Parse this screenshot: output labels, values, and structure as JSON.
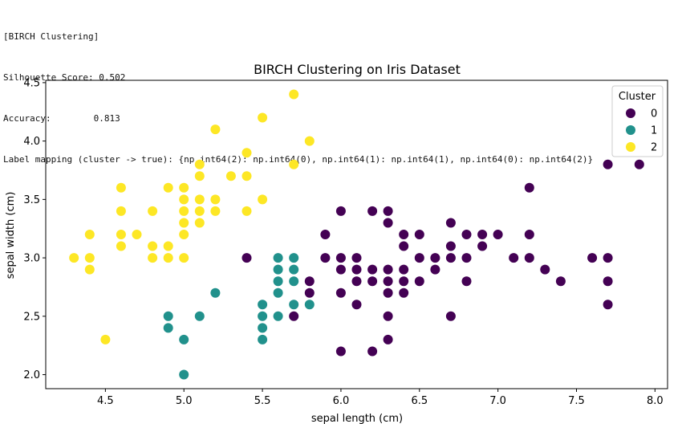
{
  "console": {
    "lines": [
      "[BIRCH Clustering]",
      "Silhouette Score: 0.502",
      "Accuracy:        0.813",
      "Label mapping (cluster -> true): {np.int64(2): np.int64(0), np.int64(1): np.int64(1), np.int64(0): np.int64(2)}"
    ]
  },
  "chart_data": {
    "type": "scatter",
    "title": "BIRCH Clustering on Iris Dataset",
    "xlabel": "sepal length (cm)",
    "ylabel": "sepal width (cm)",
    "xlim": [
      4.12,
      8.08
    ],
    "ylim": [
      1.88,
      4.52
    ],
    "xticks": [
      "4.5",
      "5.0",
      "5.5",
      "6.0",
      "6.5",
      "7.0",
      "7.5",
      "8.0"
    ],
    "yticks": [
      "2.0",
      "2.5",
      "3.0",
      "3.5",
      "4.0",
      "4.5"
    ],
    "grid": false,
    "legend": {
      "title": "Cluster",
      "placement": "top-right"
    },
    "series": [
      {
        "name": "0",
        "color": "#440154",
        "points": [
          [
            5.4,
            3.0
          ],
          [
            5.7,
            2.5
          ],
          [
            5.8,
            2.8
          ],
          [
            5.8,
            2.7
          ],
          [
            5.9,
            3.2
          ],
          [
            5.9,
            3.0
          ],
          [
            6.0,
            3.4
          ],
          [
            6.0,
            3.0
          ],
          [
            6.0,
            2.9
          ],
          [
            6.0,
            2.7
          ],
          [
            6.0,
            2.2
          ],
          [
            6.1,
            3.0
          ],
          [
            6.1,
            2.9
          ],
          [
            6.1,
            2.8
          ],
          [
            6.1,
            2.6
          ],
          [
            6.2,
            3.4
          ],
          [
            6.2,
            2.9
          ],
          [
            6.2,
            2.8
          ],
          [
            6.2,
            2.2
          ],
          [
            6.3,
            3.4
          ],
          [
            6.3,
            3.3
          ],
          [
            6.3,
            2.9
          ],
          [
            6.3,
            2.8
          ],
          [
            6.3,
            2.7
          ],
          [
            6.3,
            2.5
          ],
          [
            6.3,
            2.3
          ],
          [
            6.4,
            3.2
          ],
          [
            6.4,
            3.1
          ],
          [
            6.4,
            2.9
          ],
          [
            6.4,
            2.8
          ],
          [
            6.4,
            2.7
          ],
          [
            6.5,
            3.2
          ],
          [
            6.5,
            3.0
          ],
          [
            6.5,
            2.8
          ],
          [
            6.6,
            3.0
          ],
          [
            6.6,
            2.9
          ],
          [
            6.7,
            3.3
          ],
          [
            6.7,
            3.1
          ],
          [
            6.7,
            3.0
          ],
          [
            6.7,
            2.5
          ],
          [
            6.8,
            3.2
          ],
          [
            6.8,
            3.0
          ],
          [
            6.8,
            2.8
          ],
          [
            6.9,
            3.2
          ],
          [
            6.9,
            3.1
          ],
          [
            7.0,
            3.2
          ],
          [
            7.1,
            3.0
          ],
          [
            7.2,
            3.6
          ],
          [
            7.2,
            3.2
          ],
          [
            7.2,
            3.0
          ],
          [
            7.3,
            2.9
          ],
          [
            7.4,
            2.8
          ],
          [
            7.6,
            3.0
          ],
          [
            7.7,
            3.8
          ],
          [
            7.7,
            3.0
          ],
          [
            7.7,
            2.8
          ],
          [
            7.7,
            2.6
          ],
          [
            7.9,
            3.8
          ]
        ]
      },
      {
        "name": "1",
        "color": "#21918c",
        "points": [
          [
            4.9,
            2.5
          ],
          [
            4.9,
            2.4
          ],
          [
            5.0,
            2.3
          ],
          [
            5.0,
            2.0
          ],
          [
            5.1,
            2.5
          ],
          [
            5.2,
            2.7
          ],
          [
            5.5,
            2.6
          ],
          [
            5.5,
            2.5
          ],
          [
            5.5,
            2.4
          ],
          [
            5.5,
            2.3
          ],
          [
            5.6,
            3.0
          ],
          [
            5.6,
            2.9
          ],
          [
            5.6,
            2.8
          ],
          [
            5.6,
            2.7
          ],
          [
            5.6,
            2.5
          ],
          [
            5.7,
            3.0
          ],
          [
            5.7,
            2.9
          ],
          [
            5.7,
            2.8
          ],
          [
            5.7,
            2.6
          ],
          [
            5.8,
            2.6
          ]
        ]
      },
      {
        "name": "2",
        "color": "#fde725",
        "points": [
          [
            4.3,
            3.0
          ],
          [
            4.4,
            3.2
          ],
          [
            4.4,
            3.0
          ],
          [
            4.4,
            2.9
          ],
          [
            4.5,
            2.3
          ],
          [
            4.6,
            3.6
          ],
          [
            4.6,
            3.4
          ],
          [
            4.6,
            3.2
          ],
          [
            4.6,
            3.1
          ],
          [
            4.7,
            3.2
          ],
          [
            4.8,
            3.4
          ],
          [
            4.8,
            3.1
          ],
          [
            4.8,
            3.0
          ],
          [
            4.9,
            3.6
          ],
          [
            4.9,
            3.1
          ],
          [
            4.9,
            3.0
          ],
          [
            5.0,
            3.6
          ],
          [
            5.0,
            3.5
          ],
          [
            5.0,
            3.4
          ],
          [
            5.0,
            3.3
          ],
          [
            5.0,
            3.2
          ],
          [
            5.0,
            3.0
          ],
          [
            5.1,
            3.8
          ],
          [
            5.1,
            3.7
          ],
          [
            5.1,
            3.5
          ],
          [
            5.1,
            3.4
          ],
          [
            5.1,
            3.3
          ],
          [
            5.2,
            4.1
          ],
          [
            5.2,
            3.5
          ],
          [
            5.2,
            3.4
          ],
          [
            5.3,
            3.7
          ],
          [
            5.4,
            3.9
          ],
          [
            5.4,
            3.7
          ],
          [
            5.4,
            3.4
          ],
          [
            5.5,
            4.2
          ],
          [
            5.5,
            3.5
          ],
          [
            5.7,
            4.4
          ],
          [
            5.7,
            3.8
          ],
          [
            5.8,
            4.0
          ]
        ]
      }
    ]
  }
}
